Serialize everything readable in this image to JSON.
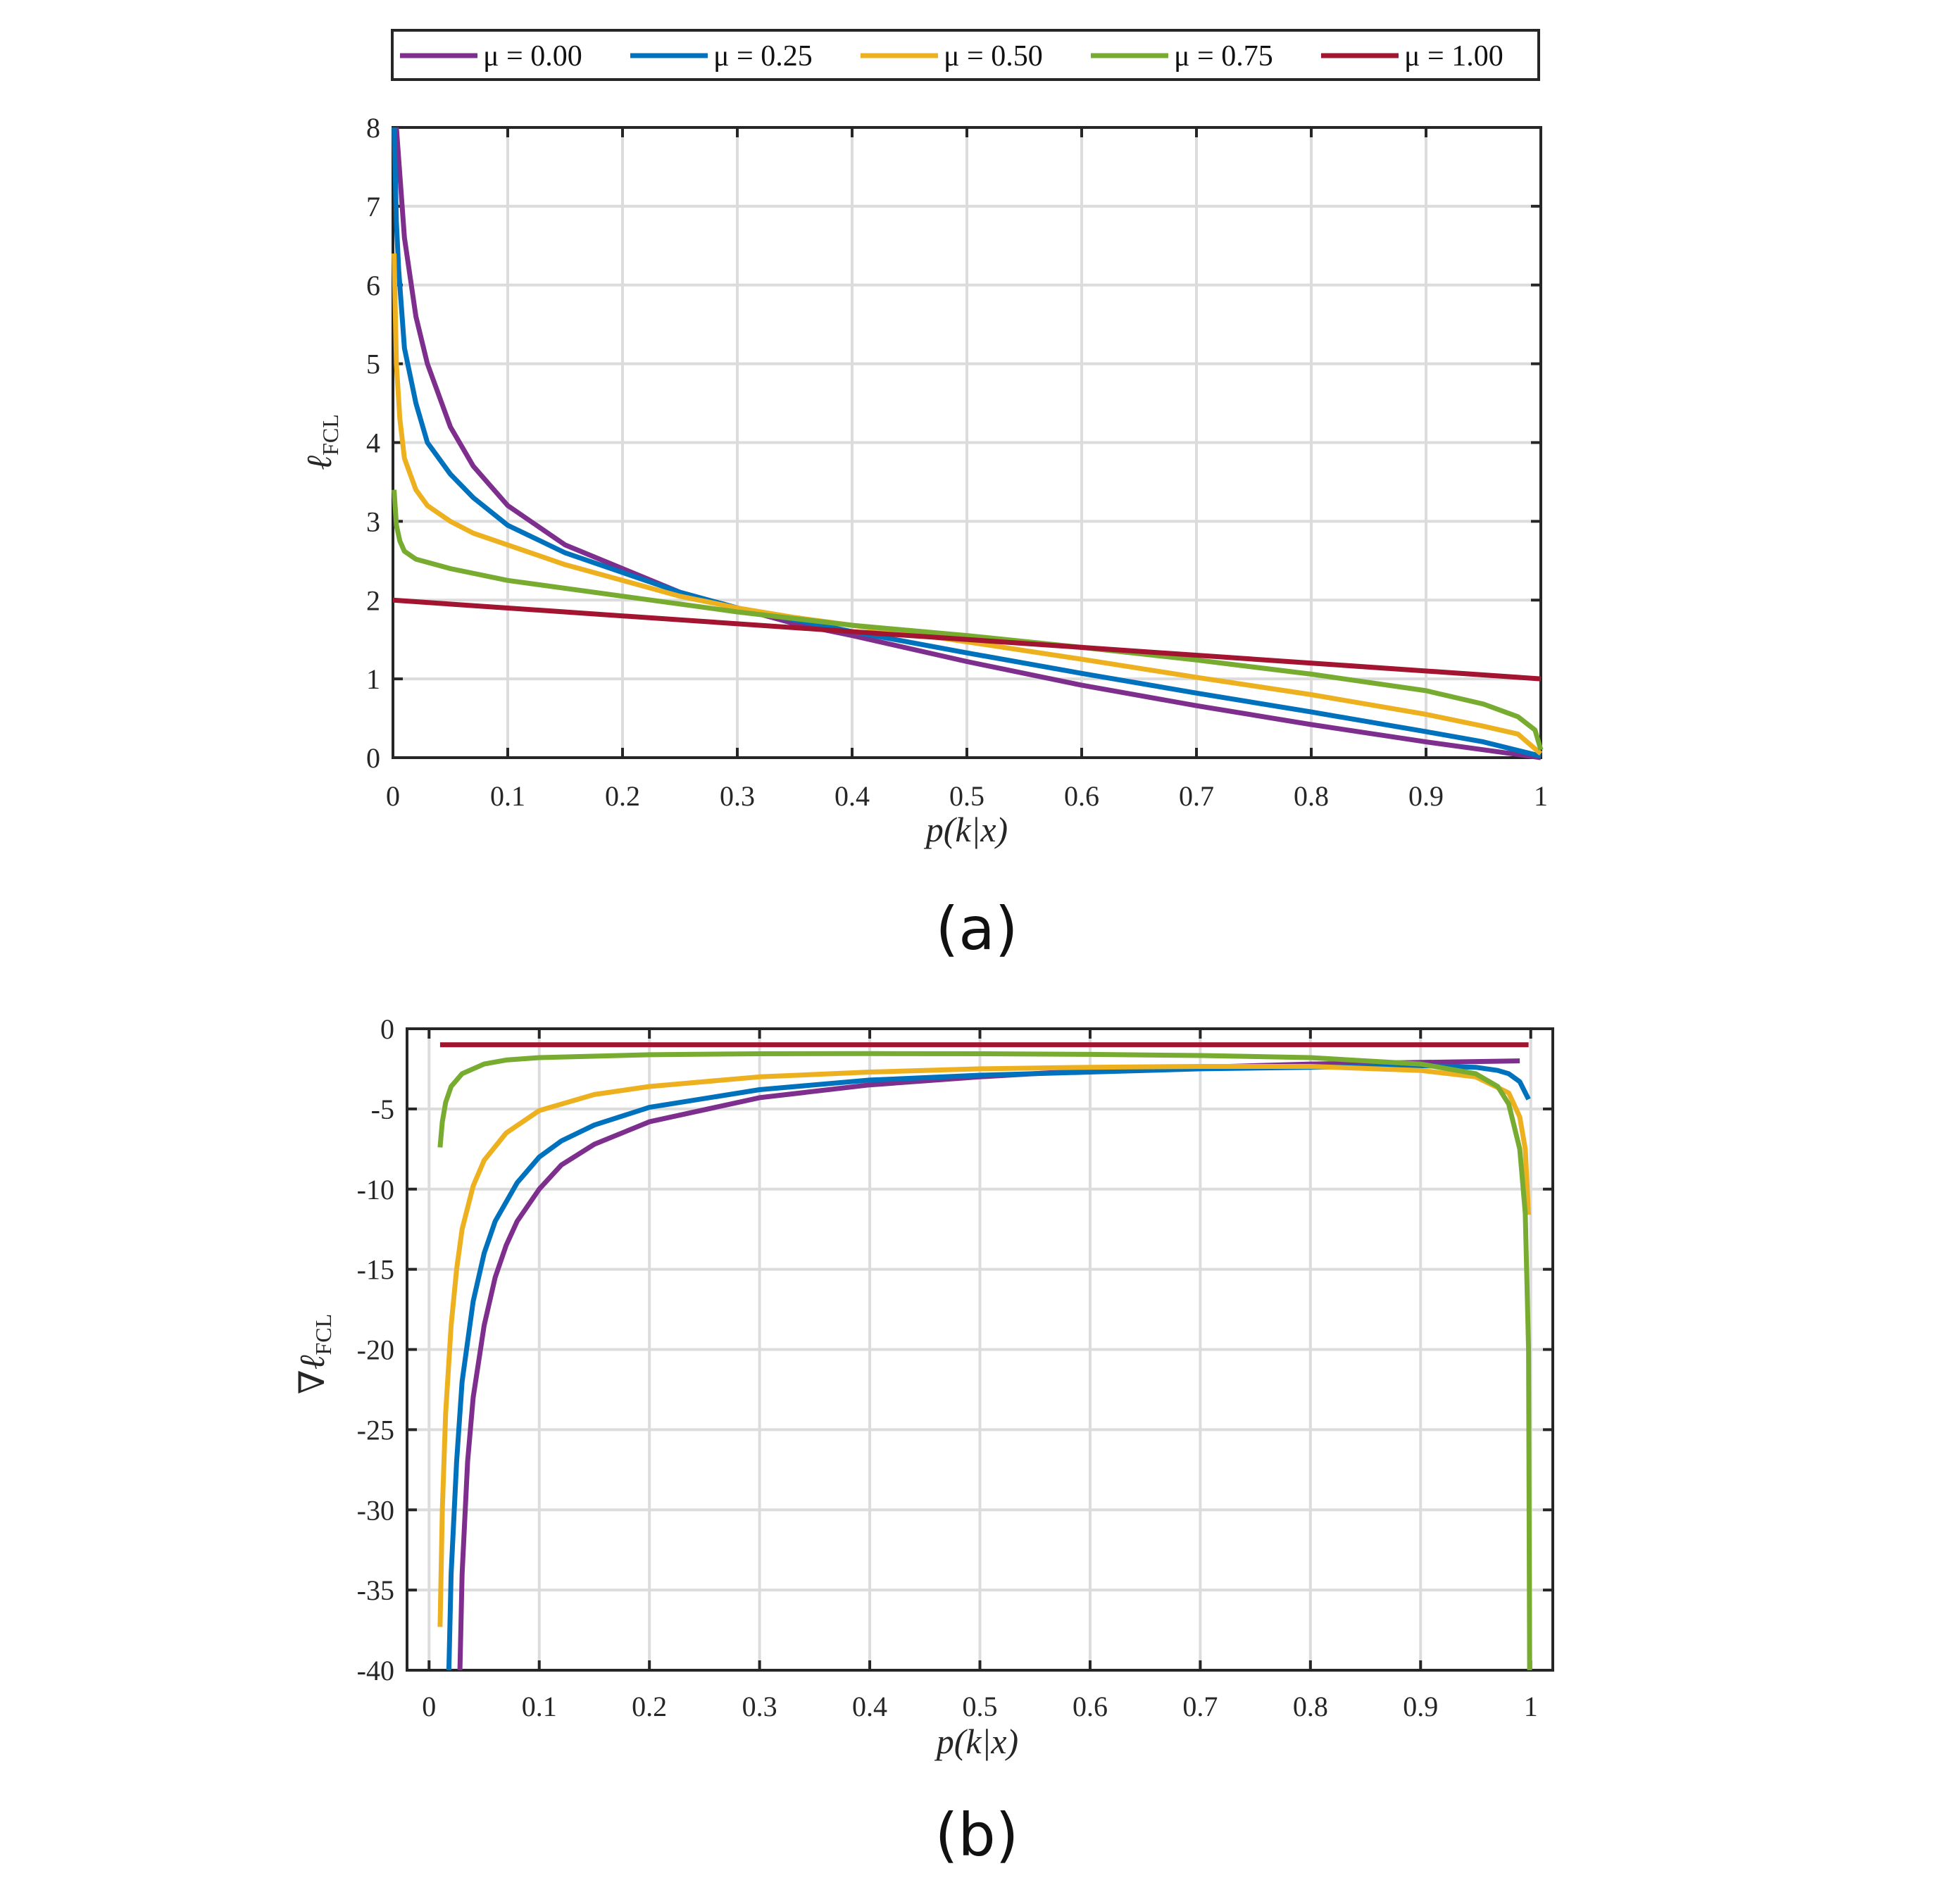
{
  "legend": [
    {
      "label": "μ = 0.00",
      "color": "#7e2f8e"
    },
    {
      "label": "μ = 0.25",
      "color": "#0072bd"
    },
    {
      "label": "μ = 0.50",
      "color": "#edb120"
    },
    {
      "label": "μ = 0.75",
      "color": "#77ac30"
    },
    {
      "label": "μ = 1.00",
      "color": "#a2142f"
    }
  ],
  "chart_data": [
    {
      "type": "line",
      "caption": "(a)",
      "xlabel": "p(k|x)",
      "ylabel": {
        "main": "ℓ",
        "subscript": "FCL"
      },
      "xlim": [
        0,
        1
      ],
      "ylim": [
        0,
        8
      ],
      "xticks": [
        0,
        0.1,
        0.2,
        0.3,
        0.4,
        0.5,
        0.6,
        0.7,
        0.8,
        0.9,
        1
      ],
      "xtick_labels": [
        "0",
        "0.1",
        "0.2",
        "0.3",
        "0.4",
        "0.5",
        "0.6",
        "0.7",
        "0.8",
        "0.9",
        "1"
      ],
      "yticks": [
        0,
        1,
        2,
        3,
        4,
        5,
        6,
        7,
        8
      ],
      "ytick_labels": [
        "0",
        "1",
        "2",
        "3",
        "4",
        "5",
        "6",
        "7",
        "8"
      ],
      "grid": true,
      "series": [
        {
          "name": "μ = 0.00",
          "color": "#7e2f8e",
          "x": [
            0.003,
            0.01,
            0.02,
            0.03,
            0.05,
            0.07,
            0.1,
            0.15,
            0.2,
            0.25,
            0.3,
            0.35,
            0.4,
            0.5,
            0.6,
            0.7,
            0.8,
            0.9,
            0.95,
            1.0
          ],
          "y": [
            8.0,
            6.6,
            5.6,
            5.0,
            4.2,
            3.7,
            3.2,
            2.7,
            2.4,
            2.1,
            1.9,
            1.7,
            1.55,
            1.22,
            0.92,
            0.66,
            0.42,
            0.2,
            0.1,
            0.0
          ]
        },
        {
          "name": "μ = 0.25",
          "color": "#0072bd",
          "x": [
            0.001,
            0.003,
            0.005,
            0.01,
            0.02,
            0.03,
            0.05,
            0.07,
            0.1,
            0.15,
            0.2,
            0.25,
            0.3,
            0.35,
            0.4,
            0.5,
            0.6,
            0.7,
            0.8,
            0.9,
            0.95,
            1.0
          ],
          "y": [
            8.0,
            6.8,
            6.2,
            5.2,
            4.5,
            4.0,
            3.6,
            3.3,
            2.95,
            2.6,
            2.35,
            2.1,
            1.9,
            1.75,
            1.6,
            1.33,
            1.07,
            0.82,
            0.58,
            0.33,
            0.2,
            0.02
          ]
        },
        {
          "name": "μ = 0.50",
          "color": "#edb120",
          "x": [
            0.001,
            0.003,
            0.006,
            0.01,
            0.02,
            0.03,
            0.05,
            0.07,
            0.1,
            0.15,
            0.2,
            0.25,
            0.3,
            0.35,
            0.4,
            0.5,
            0.6,
            0.7,
            0.8,
            0.9,
            0.95,
            0.98,
            1.0
          ],
          "y": [
            6.4,
            5.0,
            4.3,
            3.8,
            3.4,
            3.2,
            3.0,
            2.85,
            2.7,
            2.45,
            2.25,
            2.05,
            1.9,
            1.78,
            1.68,
            1.47,
            1.25,
            1.02,
            0.8,
            0.55,
            0.4,
            0.3,
            0.05
          ]
        },
        {
          "name": "μ = 0.75",
          "color": "#77ac30",
          "x": [
            0.001,
            0.003,
            0.006,
            0.01,
            0.02,
            0.05,
            0.1,
            0.2,
            0.3,
            0.4,
            0.5,
            0.6,
            0.7,
            0.8,
            0.9,
            0.95,
            0.98,
            0.995,
            1.0
          ],
          "y": [
            3.4,
            2.95,
            2.75,
            2.62,
            2.52,
            2.4,
            2.25,
            2.05,
            1.85,
            1.68,
            1.55,
            1.4,
            1.24,
            1.06,
            0.85,
            0.68,
            0.52,
            0.35,
            0.1
          ]
        },
        {
          "name": "μ = 1.00",
          "color": "#a2142f",
          "x": [
            0.0,
            1.0
          ],
          "y": [
            2.0,
            1.0
          ]
        }
      ]
    },
    {
      "type": "line",
      "caption": "(b)",
      "xlabel": "p(k|x)",
      "ylabel": {
        "main": "∇ℓ",
        "subscript": "FCL"
      },
      "xlim": [
        -0.02,
        1.02
      ],
      "ylim": [
        -40,
        0
      ],
      "xticks": [
        0,
        0.1,
        0.2,
        0.3,
        0.4,
        0.5,
        0.6,
        0.7,
        0.8,
        0.9,
        1
      ],
      "xtick_labels": [
        "0",
        "0.1",
        "0.2",
        "0.3",
        "0.4",
        "0.5",
        "0.6",
        "0.7",
        "0.8",
        "0.9",
        "1"
      ],
      "yticks": [
        0,
        -5,
        -10,
        -15,
        -20,
        -25,
        -30,
        -35,
        -40
      ],
      "ytick_labels": [
        "0",
        "-5",
        "-10",
        "-15",
        "-20",
        "-25",
        "-30",
        "-35",
        "-40"
      ],
      "grid": true,
      "series": [
        {
          "name": "μ = 0.00",
          "color": "#7e2f8e",
          "x": [
            0.028,
            0.03,
            0.035,
            0.04,
            0.05,
            0.06,
            0.07,
            0.08,
            0.1,
            0.12,
            0.15,
            0.2,
            0.3,
            0.4,
            0.5,
            0.6,
            0.7,
            0.8,
            0.9,
            0.99
          ],
          "y": [
            -40,
            -34,
            -27,
            -23,
            -18.5,
            -15.5,
            -13.5,
            -12,
            -10,
            -8.5,
            -7.2,
            -5.8,
            -4.3,
            -3.5,
            -3.0,
            -2.6,
            -2.4,
            -2.2,
            -2.1,
            -2.0
          ]
        },
        {
          "name": "μ = 0.25",
          "color": "#0072bd",
          "x": [
            0.018,
            0.02,
            0.025,
            0.03,
            0.04,
            0.05,
            0.06,
            0.08,
            0.1,
            0.12,
            0.15,
            0.2,
            0.3,
            0.4,
            0.5,
            0.6,
            0.7,
            0.8,
            0.9,
            0.95,
            0.97,
            0.98,
            0.99,
            0.998
          ],
          "y": [
            -40,
            -34,
            -27,
            -22,
            -17,
            -14,
            -12,
            -9.6,
            -8.0,
            -7.0,
            -6.0,
            -4.9,
            -3.8,
            -3.2,
            -2.9,
            -2.7,
            -2.5,
            -2.4,
            -2.3,
            -2.4,
            -2.6,
            -2.8,
            -3.3,
            -4.4
          ]
        },
        {
          "name": "μ = 0.50",
          "color": "#edb120",
          "x": [
            0.01,
            0.012,
            0.015,
            0.02,
            0.025,
            0.03,
            0.04,
            0.05,
            0.07,
            0.1,
            0.15,
            0.2,
            0.3,
            0.4,
            0.5,
            0.6,
            0.7,
            0.8,
            0.9,
            0.95,
            0.98,
            0.99,
            0.995,
            0.998
          ],
          "y": [
            -37.3,
            -30,
            -24,
            -18.5,
            -15,
            -12.5,
            -9.8,
            -8.2,
            -6.5,
            -5.1,
            -4.1,
            -3.6,
            -3.0,
            -2.7,
            -2.5,
            -2.4,
            -2.35,
            -2.35,
            -2.6,
            -3.0,
            -4.0,
            -5.5,
            -7.5,
            -11.6
          ]
        },
        {
          "name": "μ = 0.75",
          "color": "#77ac30",
          "x": [
            0.01,
            0.012,
            0.015,
            0.02,
            0.03,
            0.05,
            0.07,
            0.1,
            0.2,
            0.3,
            0.4,
            0.5,
            0.6,
            0.7,
            0.8,
            0.9,
            0.95,
            0.97,
            0.98,
            0.99,
            0.995,
            0.998,
            0.999
          ],
          "y": [
            -7.4,
            -5.8,
            -4.6,
            -3.6,
            -2.8,
            -2.2,
            -1.95,
            -1.8,
            -1.62,
            -1.56,
            -1.55,
            -1.56,
            -1.6,
            -1.67,
            -1.8,
            -2.2,
            -2.8,
            -3.6,
            -4.7,
            -7.5,
            -11.5,
            -20,
            -40
          ]
        },
        {
          "name": "μ = 1.00",
          "color": "#a2142f",
          "x": [
            0.01,
            0.998
          ],
          "y": [
            -1.0,
            -1.0
          ]
        }
      ]
    }
  ]
}
